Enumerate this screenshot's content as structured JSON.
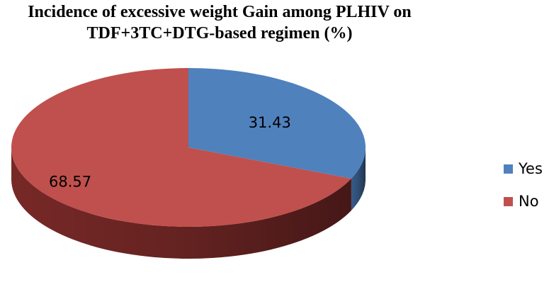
{
  "chart_data": {
    "type": "pie",
    "title_lines": [
      "Incidence of excessive weight Gain among PLHIV on",
      "TDF+3TC+DTG-based regimen (%)"
    ],
    "slices": [
      {
        "label": "Yes",
        "value": 31.43,
        "value_label": "31.43",
        "color": "#4f81bd",
        "side_color": "#3a6090"
      },
      {
        "label": "No",
        "value": 68.57,
        "value_label": "68.57",
        "color": "#c0504d",
        "side_color": "#7d2b29"
      }
    ],
    "start_angle": "12 o'clock, clockwise",
    "style": "3D",
    "legend_position": "right"
  }
}
